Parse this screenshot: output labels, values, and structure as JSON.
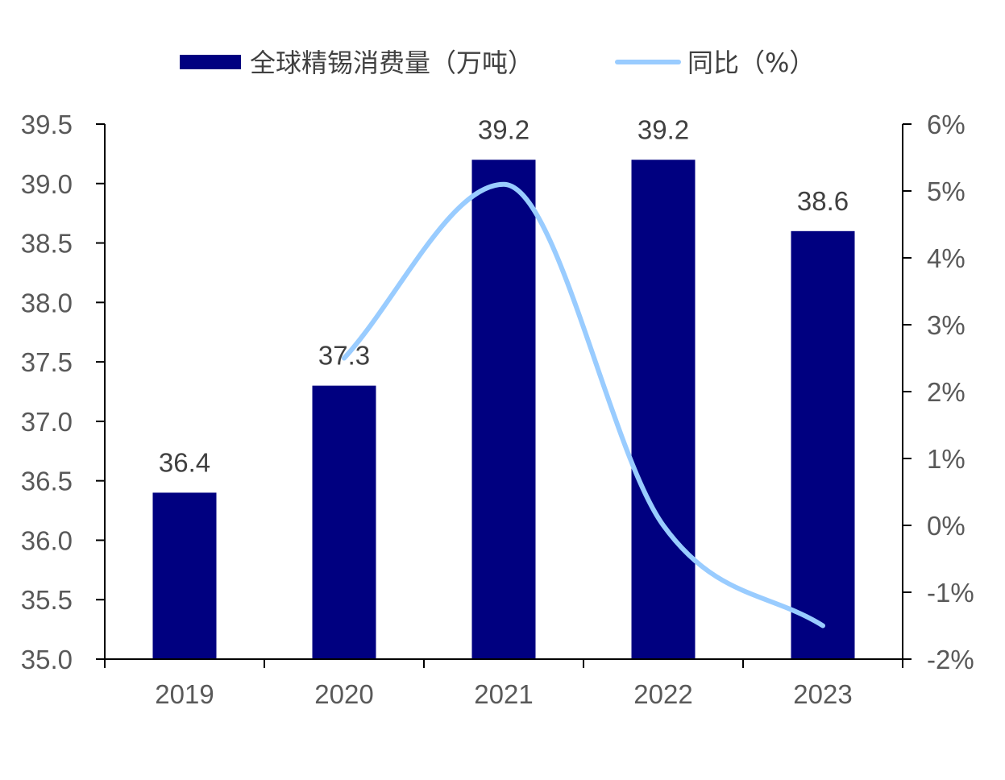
{
  "legend": {
    "bar_label": "全球精锡消费量（万吨）",
    "line_label": "同比（%）"
  },
  "colors": {
    "bar": "#000080",
    "line": "#99CCFF",
    "axis": "#000000",
    "text": "#595959"
  },
  "chart_data": {
    "type": "bar",
    "title": "",
    "categories": [
      "2019",
      "2020",
      "2021",
      "2022",
      "2023"
    ],
    "series": [
      {
        "name": "全球精锡消费量（万吨）",
        "type": "bar",
        "axis": "left",
        "values": [
          36.4,
          37.3,
          39.2,
          39.2,
          38.6
        ],
        "data_labels": [
          "36.4",
          "37.3",
          "39.2",
          "39.2",
          "38.6"
        ]
      },
      {
        "name": "同比（%）",
        "type": "line",
        "smooth": true,
        "axis": "right",
        "values": [
          null,
          2.5,
          5.1,
          0.0,
          -1.5
        ]
      }
    ],
    "y_left": {
      "min": 35.0,
      "max": 39.5,
      "step": 0.5,
      "tick_labels": [
        "35.0",
        "35.5",
        "36.0",
        "36.5",
        "37.0",
        "37.5",
        "38.0",
        "38.5",
        "39.0",
        "39.5"
      ]
    },
    "y_right": {
      "min": -2,
      "max": 6,
      "step": 1,
      "tick_labels": [
        "-2%",
        "-1%",
        "0%",
        "1%",
        "2%",
        "3%",
        "4%",
        "5%",
        "6%"
      ]
    },
    "grid": false,
    "legend_position": "top"
  }
}
